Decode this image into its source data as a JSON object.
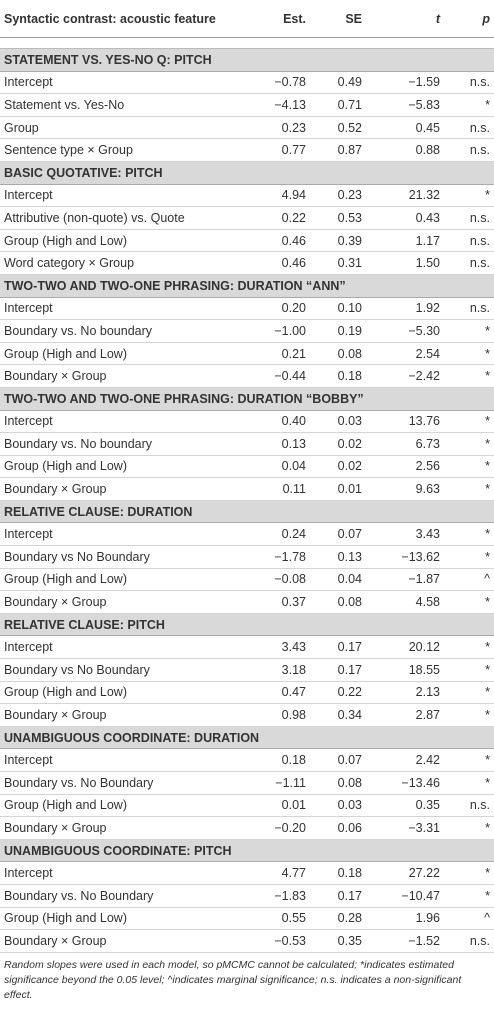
{
  "header": [
    "Syntactic contrast: acoustic feature",
    "Est.",
    "SE",
    "t",
    "p"
  ],
  "sections": [
    {
      "title": "STATEMENT VS. YES-NO Q: PITCH",
      "rows": [
        [
          "Intercept",
          "−0.78",
          "0.49",
          "−1.59",
          "n.s."
        ],
        [
          "Statement vs. Yes-No",
          "−4.13",
          "0.71",
          "−5.83",
          "*"
        ],
        [
          "Group",
          "0.23",
          "0.52",
          "0.45",
          "n.s."
        ],
        [
          "Sentence type × Group",
          "0.77",
          "0.87",
          "0.88",
          "n.s."
        ]
      ]
    },
    {
      "title": "BASIC QUOTATIVE: PITCH",
      "rows": [
        [
          "Intercept",
          "4.94",
          "0.23",
          "21.32",
          "*"
        ],
        [
          "Attributive (non-quote) vs. Quote",
          "0.22",
          "0.53",
          "0.43",
          "n.s."
        ],
        [
          "Group (High and Low)",
          "0.46",
          "0.39",
          "1.17",
          "n.s."
        ],
        [
          "Word category × Group",
          "0.46",
          "0.31",
          "1.50",
          "n.s."
        ]
      ]
    },
    {
      "title": "TWO-TWO AND TWO-ONE PHRASING: DURATION “ANN”",
      "rows": [
        [
          "Intercept",
          "0.20",
          "0.10",
          "1.92",
          "n.s."
        ],
        [
          "Boundary vs. No boundary",
          "−1.00",
          "0.19",
          "−5.30",
          "*"
        ],
        [
          "Group (High and Low)",
          "0.21",
          "0.08",
          "2.54",
          "*"
        ],
        [
          "Boundary × Group",
          "−0.44",
          "0.18",
          "−2.42",
          "*"
        ]
      ]
    },
    {
      "title": "TWO-TWO AND TWO-ONE PHRASING: DURATION “BOBBY”",
      "rows": [
        [
          "Intercept",
          "0.40",
          "0.03",
          "13.76",
          "*"
        ],
        [
          "Boundary vs. No boundary",
          "0.13",
          "0.02",
          "6.73",
          "*"
        ],
        [
          "Group (High and Low)",
          "0.04",
          "0.02",
          "2.56",
          "*"
        ],
        [
          "Boundary × Group",
          "0.11",
          "0.01",
          "9.63",
          "*"
        ]
      ]
    },
    {
      "title": "RELATIVE CLAUSE: DURATION",
      "rows": [
        [
          "Intercept",
          "0.24",
          "0.07",
          "3.43",
          "*"
        ],
        [
          "Boundary vs No Boundary",
          "−1.78",
          "0.13",
          "−13.62",
          "*"
        ],
        [
          "Group (High and Low)",
          "−0.08",
          "0.04",
          "−1.87",
          "^"
        ],
        [
          "Boundary × Group",
          "0.37",
          "0.08",
          "4.58",
          "*"
        ]
      ]
    },
    {
      "title": "RELATIVE CLAUSE: PITCH",
      "rows": [
        [
          "Intercept",
          "3.43",
          "0.17",
          "20.12",
          "*"
        ],
        [
          "Boundary vs No Boundary",
          "3.18",
          "0.17",
          "18.55",
          "*"
        ],
        [
          "Group (High and Low)",
          "0.47",
          "0.22",
          "2.13",
          "*"
        ],
        [
          "Boundary × Group",
          "0.98",
          "0.34",
          "2.87",
          "*"
        ]
      ]
    },
    {
      "title": "UNAMBIGUOUS COORDINATE: DURATION",
      "rows": [
        [
          "Intercept",
          "0.18",
          "0.07",
          "2.42",
          "*"
        ],
        [
          "Boundary vs. No Boundary",
          "−1.11",
          "0.08",
          "−13.46",
          "*"
        ],
        [
          "Group (High and Low)",
          "0.01",
          "0.03",
          "0.35",
          "n.s."
        ],
        [
          "Boundary × Group",
          "−0.20",
          "0.06",
          "−3.31",
          "*"
        ]
      ]
    },
    {
      "title": "UNAMBIGUOUS COORDINATE: PITCH",
      "rows": [
        [
          "Intercept",
          "4.77",
          "0.18",
          "27.22",
          "*"
        ],
        [
          "Boundary vs. No Boundary",
          "−1.83",
          "0.17",
          "−10.47",
          "*"
        ],
        [
          "Group (High and Low)",
          "0.55",
          "0.28",
          "1.96",
          "^"
        ],
        [
          "Boundary × Group",
          "−0.53",
          "0.35",
          "−1.52",
          "n.s."
        ]
      ]
    }
  ],
  "footnote": "Random slopes were used in each model, so pMCMC cannot be calculated; *indicates estimated significance beyond the 0.05 level; ^indicates marginal significance; n.s. indicates a non-significant effect."
}
